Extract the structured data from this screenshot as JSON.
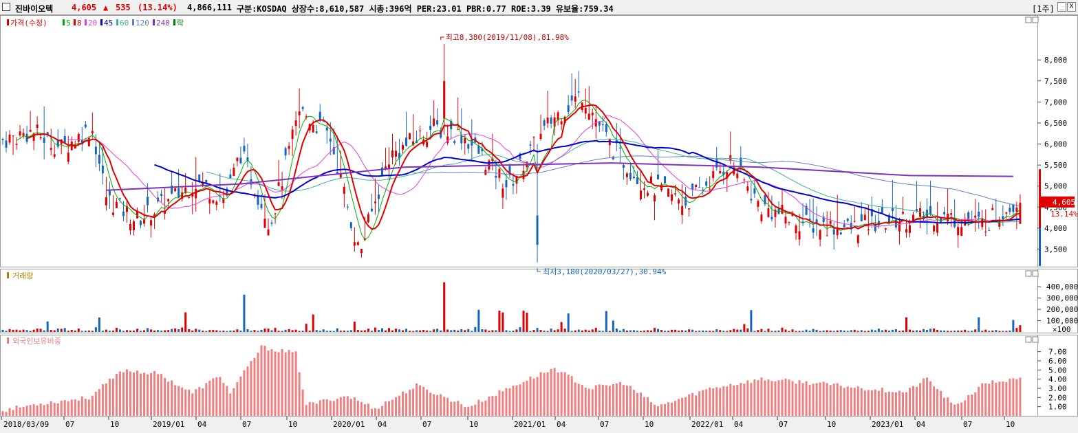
{
  "header": {
    "name": "진바이오텍",
    "price": "4,605",
    "arrow": "▲",
    "change": "535",
    "change_pct": "(13.14%)",
    "volume": "4,866,111",
    "info": "구분:KOSDAQ 상장수:8,610,587 시총:396억 PER:23.01 PBR:0.77 ROE:3.39 유보율:759.34",
    "period": "[1주]",
    "btn_min": "_",
    "btn_close": "X"
  },
  "colors": {
    "up": "#e00000",
    "down": "#1565c0",
    "ma5": "#00b000",
    "ma8": "#e00000",
    "ma20": "#e040e0",
    "ma45": "#0000d0",
    "ma60": "#40b0a0",
    "ma120": "#6080c0",
    "ma240": "#8030c0",
    "foreign": "#f08080"
  },
  "price_panel": {
    "legend": [
      {
        "text": "가격(수정)",
        "color": "#e00000"
      },
      {
        "text": "5",
        "color": "#00b000"
      },
      {
        "text": "8",
        "color": "#e00000"
      },
      {
        "text": "20",
        "color": "#e040e0"
      },
      {
        "text": "45",
        "color": "#0000d0"
      },
      {
        "text": "60",
        "color": "#40b0a0"
      },
      {
        "text": "120",
        "color": "#6080c0"
      },
      {
        "text": "240",
        "color": "#8030c0"
      },
      {
        "text": "락",
        "color": "#008000"
      }
    ],
    "high_label": "최고8,380(2019/11/08),81.98%",
    "low_label": "최저3,180(2020/03/27),30.94%",
    "y_ticks": [
      "8,000",
      "7,500",
      "7,000",
      "6,500",
      "6,000",
      "5,500",
      "5,000",
      "4,500",
      "4,000",
      "3,500"
    ],
    "current_price": "4,605",
    "current_pct": "13.14%"
  },
  "volume_panel": {
    "title": "거래량",
    "y_ticks": [
      "400,000",
      "300,000",
      "200,000",
      "100,000"
    ],
    "unit": "×100"
  },
  "foreign_panel": {
    "title": "외국인보유비중",
    "y_ticks": [
      "7.00",
      "6.00",
      "5.00",
      "4.00",
      "3.00",
      "2.00",
      "1.00"
    ]
  },
  "x_axis": {
    "labels": [
      "2018/03/09",
      "07",
      "10",
      "2019/01",
      "04",
      "07",
      "10",
      "2020/01",
      "04",
      "07",
      "10",
      "2021/01",
      "04",
      "07",
      "10",
      "2022/01",
      "04",
      "07",
      "10",
      "2023/01",
      "04",
      "07",
      "10"
    ]
  },
  "chart_data": {
    "type": "candlestick",
    "interval": "weekly",
    "price_range": [
      3180,
      8380
    ],
    "high": {
      "value": 8380,
      "date": "2019/11/08"
    },
    "low": {
      "value": 3180,
      "date": "2020/03/27"
    },
    "last": 4605,
    "approx_close_path": [
      {
        "date": "2018/03",
        "close": 6100
      },
      {
        "date": "2018/05",
        "close": 6300
      },
      {
        "date": "2018/07",
        "close": 5900
      },
      {
        "date": "2018/09",
        "close": 6400
      },
      {
        "date": "2018/10",
        "close": 4700
      },
      {
        "date": "2018/12",
        "close": 4200
      },
      {
        "date": "2019/02",
        "close": 4600
      },
      {
        "date": "2019/04",
        "close": 5100
      },
      {
        "date": "2019/06",
        "close": 4700
      },
      {
        "date": "2019/07",
        "close": 5800
      },
      {
        "date": "2019/09",
        "close": 4100
      },
      {
        "date": "2019/11",
        "close": 6800
      },
      {
        "date": "2020/01",
        "close": 6200
      },
      {
        "date": "2020/03",
        "close": 3400
      },
      {
        "date": "2020/05",
        "close": 5700
      },
      {
        "date": "2020/08",
        "close": 6400
      },
      {
        "date": "2020/10",
        "close": 6200
      },
      {
        "date": "2021/01",
        "close": 5000
      },
      {
        "date": "2021/04",
        "close": 6600
      },
      {
        "date": "2021/06",
        "close": 7200
      },
      {
        "date": "2021/08",
        "close": 5900
      },
      {
        "date": "2021/10",
        "close": 5100
      },
      {
        "date": "2022/01",
        "close": 4600
      },
      {
        "date": "2022/04",
        "close": 5600
      },
      {
        "date": "2022/06",
        "close": 4500
      },
      {
        "date": "2022/09",
        "close": 4100
      },
      {
        "date": "2022/12",
        "close": 4000
      },
      {
        "date": "2023/03",
        "close": 4200
      },
      {
        "date": "2023/06",
        "close": 4300
      },
      {
        "date": "2023/09",
        "close": 4100
      },
      {
        "date": "2023/11",
        "close": 4605
      }
    ],
    "ma240_approx": [
      {
        "date": "2018/10",
        "value": 4900
      },
      {
        "date": "2019/07",
        "value": 5050
      },
      {
        "date": "2020/06",
        "value": 5450
      },
      {
        "date": "2021/01",
        "value": 5500
      },
      {
        "date": "2021/08",
        "value": 5550
      },
      {
        "date": "2022/06",
        "value": 5450
      },
      {
        "date": "2023/04",
        "value": 5250
      },
      {
        "date": "2023/11",
        "value": 5230
      }
    ]
  }
}
